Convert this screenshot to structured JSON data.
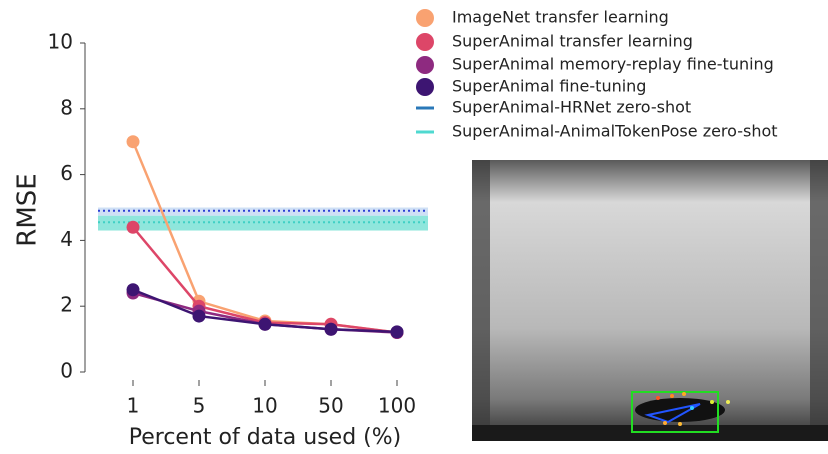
{
  "chart_data": {
    "type": "line",
    "xlabel": "Percent of data used (%)",
    "ylabel": "RMSE",
    "categories": [
      "1",
      "5",
      "10",
      "50",
      "100"
    ],
    "ylim": [
      0,
      10
    ],
    "yticks": [
      0,
      2,
      4,
      6,
      8,
      10
    ],
    "series": [
      {
        "name": "ImageNet transfer learning",
        "color": "#f9a271",
        "values": [
          7.0,
          2.15,
          1.55,
          1.45,
          1.2
        ]
      },
      {
        "name": "SuperAnimal transfer learning",
        "color": "#dd4668",
        "values": [
          4.4,
          2.0,
          1.5,
          1.45,
          1.2
        ]
      },
      {
        "name": "SuperAnimal memory-replay fine-tuning",
        "color": "#8e2a80",
        "values": [
          2.4,
          1.85,
          1.45,
          1.3,
          1.2
        ]
      },
      {
        "name": "SuperAnimal fine-tuning",
        "color": "#3d1572",
        "values": [
          2.5,
          1.7,
          1.45,
          1.3,
          1.22
        ]
      }
    ],
    "zero_shot": [
      {
        "name": "SuperAnimal-HRNet zero-shot",
        "color": "#2a78b8",
        "line_color": "#2b3fd6",
        "band_color": "#cfe0f5",
        "value": 4.9,
        "band": [
          4.75,
          5.0
        ]
      },
      {
        "name": "SuperAnimal-AnimalTokenPose zero-shot",
        "color": "#4fd9d0",
        "line_color": "#3fd0c4",
        "band_color": "#8fe6dc",
        "value": 4.55,
        "band": [
          4.3,
          4.75
        ]
      }
    ]
  }
}
